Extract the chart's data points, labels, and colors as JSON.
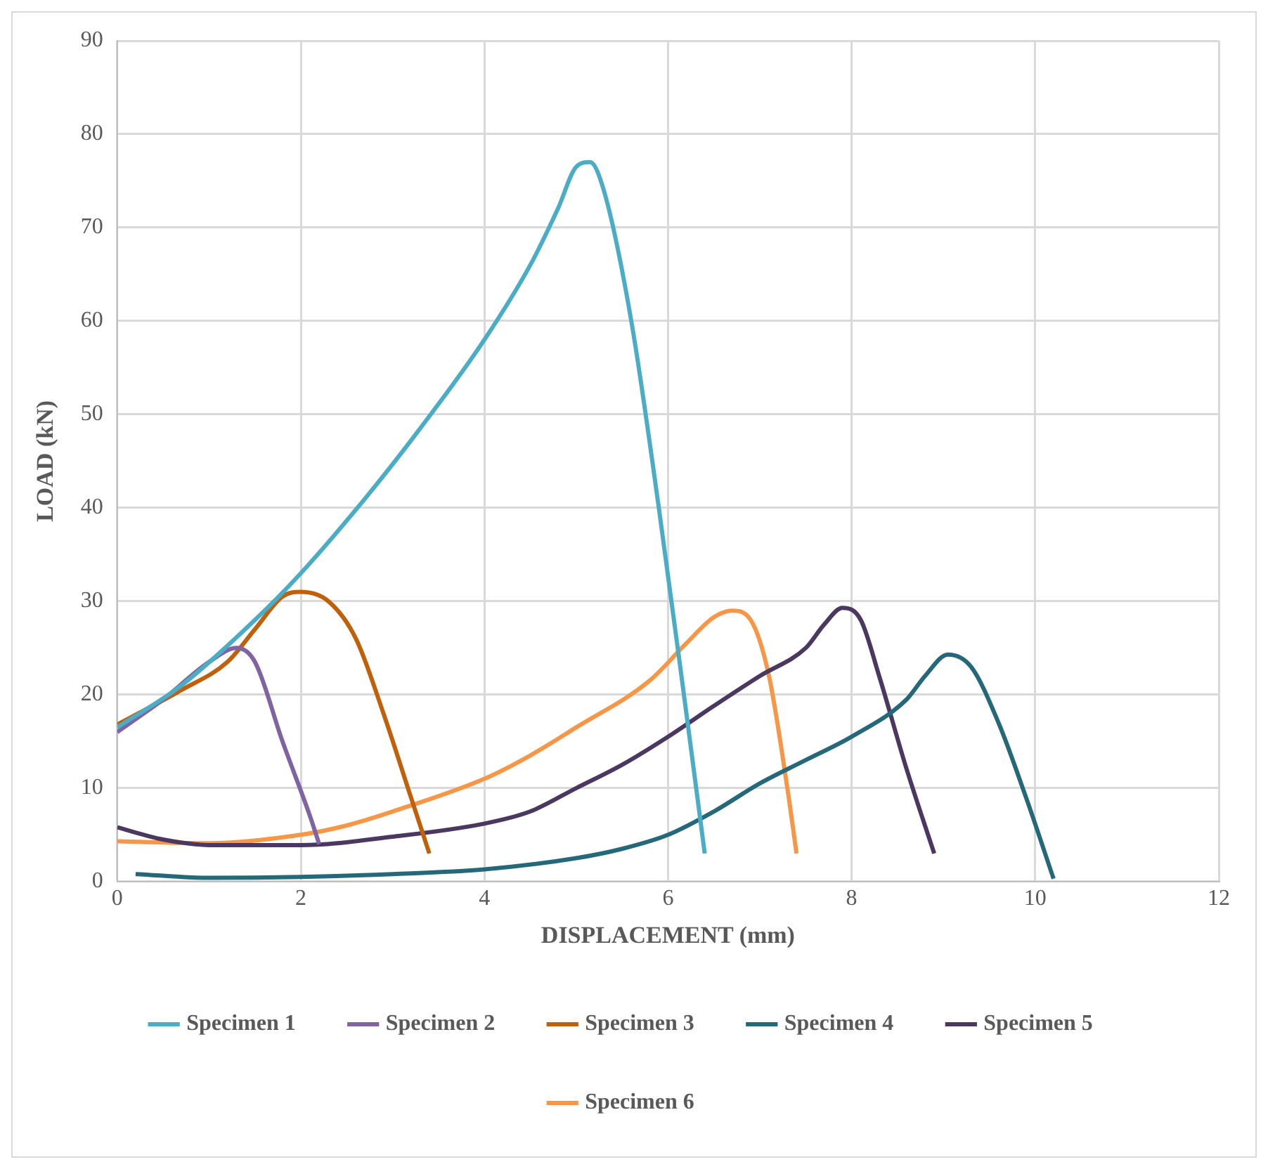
{
  "chart_data": {
    "type": "line",
    "xlabel": "DISPLACEMENT (mm)",
    "ylabel": "LOAD (kN)",
    "xlim": [
      0,
      12
    ],
    "xticks": [
      0,
      2,
      4,
      6,
      8,
      10,
      12
    ],
    "ylim": [
      0,
      90
    ],
    "yticks": [
      0,
      10,
      20,
      30,
      40,
      50,
      60,
      70,
      80,
      90
    ],
    "grid": true,
    "legend": "bottom",
    "marker": "none",
    "line_style": "solid",
    "series": [
      {
        "name": "Specimen 1",
        "color": "#4bacc6",
        "x": [
          0,
          0.7,
          1.5,
          2,
          2.7,
          3.3,
          4,
          4.5,
          4.8,
          5,
          5.15,
          5.3,
          5.6,
          5.9,
          6.2,
          6.4
        ],
        "values": [
          16.5,
          21,
          28,
          33,
          41,
          48.5,
          58,
          66,
          72,
          76.5,
          77,
          74,
          60,
          40,
          18,
          3
        ]
      },
      {
        "name": "Specimen 2",
        "color": "#8064a2",
        "x": [
          0,
          0.5,
          1,
          1.3,
          1.5,
          1.8,
          2.1,
          2.2
        ],
        "values": [
          16,
          19.5,
          23.5,
          25,
          23.5,
          15,
          7,
          4
        ]
      },
      {
        "name": "Specimen 3",
        "color": "#c0600a",
        "x": [
          0,
          0.7,
          1.2,
          1.5,
          1.8,
          2,
          2.3,
          2.6,
          2.9,
          3.2,
          3.4
        ],
        "values": [
          16.8,
          20.5,
          23.5,
          27,
          30.5,
          31,
          30,
          26,
          18,
          9,
          3
        ]
      },
      {
        "name": "Specimen 4",
        "color": "#24687a",
        "x": [
          0.2,
          1,
          2,
          3,
          4,
          5,
          5.5,
          6,
          6.5,
          7,
          7.5,
          8,
          8.6,
          8.8,
          9.05,
          9.3,
          9.6,
          9.9,
          10.2
        ],
        "values": [
          0.8,
          0.4,
          0.5,
          0.8,
          1.3,
          2.5,
          3.5,
          5,
          7.5,
          10.5,
          13,
          15.5,
          19.5,
          22,
          24.3,
          23,
          17,
          9,
          0.3
        ]
      },
      {
        "name": "Specimen 5",
        "color": "#4b3860",
        "x": [
          0,
          0.5,
          1,
          2,
          3,
          4,
          4.5,
          5,
          5.5,
          6,
          6.5,
          7,
          7.5,
          7.7,
          7.9,
          8.1,
          8.3,
          8.6,
          8.9
        ],
        "values": [
          5.8,
          4.5,
          3.9,
          3.9,
          4.8,
          6.2,
          7.5,
          10,
          12.5,
          15.5,
          18.8,
          22,
          25,
          27.5,
          29.3,
          28,
          22,
          12,
          3
        ]
      },
      {
        "name": "Specimen 6",
        "color": "#f79646",
        "x": [
          0,
          1,
          2,
          2.5,
          3,
          4,
          4.5,
          5,
          5.8,
          6.2,
          6.5,
          6.7,
          6.9,
          7.1,
          7.3,
          7.4
        ],
        "values": [
          4.3,
          4.1,
          5,
          6,
          7.5,
          11,
          13.5,
          16.5,
          21.5,
          25.5,
          28.3,
          29,
          28,
          22,
          10,
          3
        ]
      }
    ]
  }
}
